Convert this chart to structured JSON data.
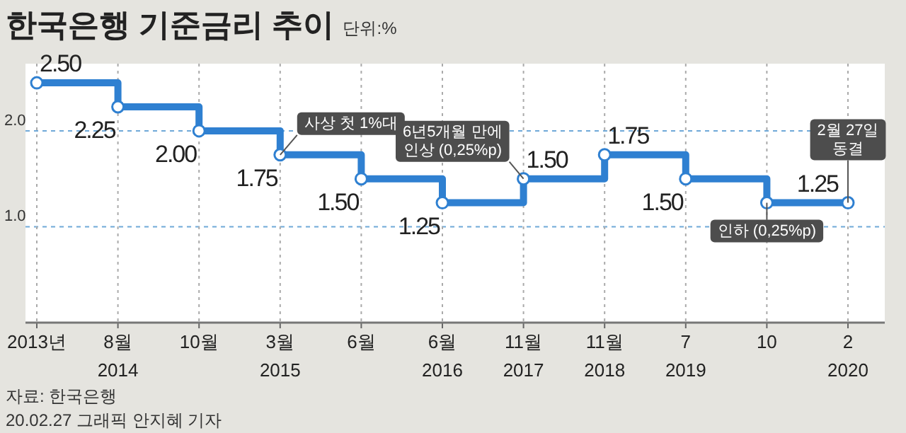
{
  "chart_data": {
    "type": "step",
    "title": "한국은행 기준금리 추이",
    "subtitle": "단위:%",
    "categories": [
      "2013년",
      "8월\n2014",
      "10월",
      "3월\n2015",
      "6월",
      "6월\n2016",
      "11월\n2017",
      "11월\n2018",
      "7\n2019",
      "10",
      "2\n2020"
    ],
    "series": [
      {
        "color": "#2f80d1",
        "values": [
          2.5,
          2.25,
          2.0,
          1.75,
          1.5,
          1.25,
          1.5,
          1.75,
          1.5,
          1.25,
          1.25
        ],
        "value_labels": [
          "2.50",
          "2.25",
          "2.00",
          "1.75",
          "1.50",
          "1.25",
          "1.50",
          "1.75",
          "1.50",
          null,
          "1.25"
        ]
      }
    ],
    "marker": "circle",
    "ylim": [
      0,
      2.7
    ],
    "yticks": [
      {
        "value": 1,
        "label": "1.0"
      },
      {
        "value": 2,
        "label": "2.0"
      }
    ],
    "grid": true,
    "annotations": [
      {
        "text": "사상 첫 1%대",
        "x": "3월\n2015",
        "y": 1.75
      },
      {
        "text": "6년5개월 만에\n인상 (0,25%p)",
        "x": "11월\n2017",
        "y": 1.5
      },
      {
        "text": "인하 (0,25%p)",
        "x": "10",
        "y": 1.25
      },
      {
        "text": "2월 27일\n동결",
        "x": "2\n2020",
        "y": 1.25
      },
      "자료: 한국은행",
      "20.02.27 그래픽 안지혜 기자"
    ]
  }
}
